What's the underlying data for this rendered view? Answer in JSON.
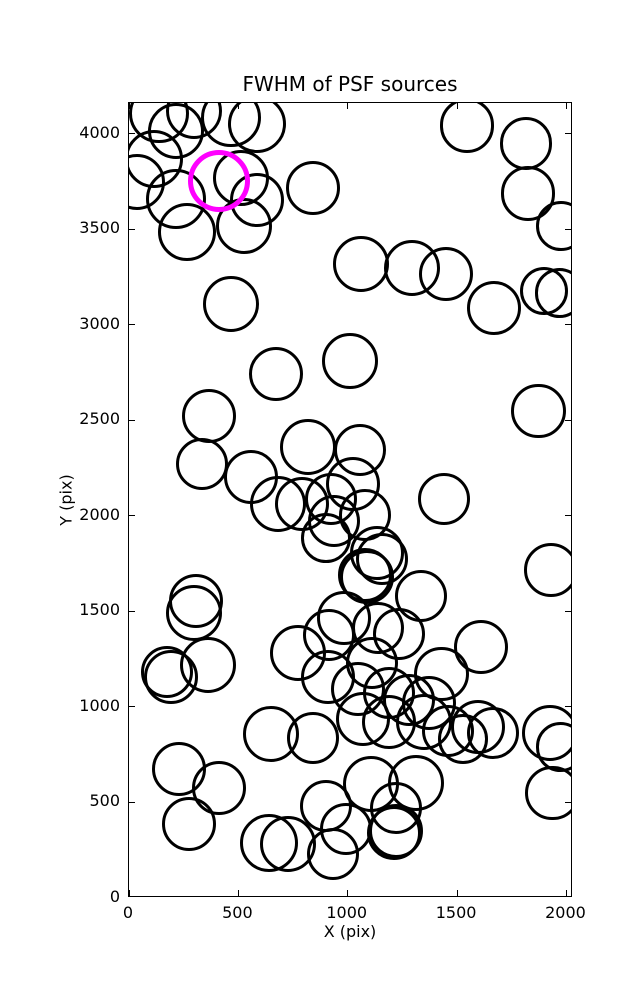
{
  "chart_data": {
    "type": "scatter",
    "title": "FWHM of PSF sources",
    "xlabel": "X (pix)",
    "ylabel": "Y (pix)",
    "xlim": [
      0,
      2030
    ],
    "ylim": [
      0,
      4160
    ],
    "x_ticks": [
      0,
      500,
      1000,
      1500,
      2000
    ],
    "y_ticks": [
      0,
      500,
      1000,
      1500,
      2000,
      2500,
      3000,
      3500,
      4000
    ],
    "grid": false,
    "legend": null,
    "marker": "circle-outline",
    "stroke_color": "#000000",
    "highlight_color": "#ff00ff",
    "radius_units": "x-data-units",
    "points": [
      {
        "x": 137,
        "y": 4105,
        "r": 137
      },
      {
        "x": 215,
        "y": 4016,
        "r": 128
      },
      {
        "x": 297,
        "y": 4120,
        "r": 128
      },
      {
        "x": 467,
        "y": 4084,
        "r": 137
      },
      {
        "x": 586,
        "y": 4052,
        "r": 133
      },
      {
        "x": 114,
        "y": 3869,
        "r": 133
      },
      {
        "x": 37,
        "y": 3749,
        "r": 128
      },
      {
        "x": 215,
        "y": 3660,
        "r": 137
      },
      {
        "x": 513,
        "y": 3770,
        "r": 128
      },
      {
        "x": 265,
        "y": 3487,
        "r": 133
      },
      {
        "x": 526,
        "y": 3518,
        "r": 128
      },
      {
        "x": 586,
        "y": 3654,
        "r": 124
      },
      {
        "x": 842,
        "y": 3717,
        "r": 124
      },
      {
        "x": 467,
        "y": 3110,
        "r": 128
      },
      {
        "x": 1547,
        "y": 4042,
        "r": 124
      },
      {
        "x": 1817,
        "y": 3948,
        "r": 119
      },
      {
        "x": 1826,
        "y": 3686,
        "r": 124
      },
      {
        "x": 1977,
        "y": 3518,
        "r": 114
      },
      {
        "x": 1899,
        "y": 3178,
        "r": 110
      },
      {
        "x": 1968,
        "y": 3168,
        "r": 114
      },
      {
        "x": 1670,
        "y": 3089,
        "r": 124
      },
      {
        "x": 1062,
        "y": 3319,
        "r": 128
      },
      {
        "x": 1295,
        "y": 3298,
        "r": 128
      },
      {
        "x": 1451,
        "y": 3267,
        "r": 124
      },
      {
        "x": 673,
        "y": 2743,
        "r": 124
      },
      {
        "x": 1011,
        "y": 2811,
        "r": 128
      },
      {
        "x": 1872,
        "y": 2550,
        "r": 124
      },
      {
        "x": 366,
        "y": 2524,
        "r": 124
      },
      {
        "x": 334,
        "y": 2272,
        "r": 119
      },
      {
        "x": 558,
        "y": 2204,
        "r": 124
      },
      {
        "x": 819,
        "y": 2361,
        "r": 128
      },
      {
        "x": 1057,
        "y": 2346,
        "r": 119
      },
      {
        "x": 1442,
        "y": 2089,
        "r": 119
      },
      {
        "x": 1025,
        "y": 2168,
        "r": 124
      },
      {
        "x": 682,
        "y": 2063,
        "r": 128
      },
      {
        "x": 792,
        "y": 2063,
        "r": 124
      },
      {
        "x": 924,
        "y": 2089,
        "r": 119
      },
      {
        "x": 938,
        "y": 1974,
        "r": 119
      },
      {
        "x": 1080,
        "y": 2005,
        "r": 119
      },
      {
        "x": 902,
        "y": 1885,
        "r": 114
      },
      {
        "x": 1135,
        "y": 1806,
        "r": 124
      },
      {
        "x": 1158,
        "y": 1775,
        "r": 119
      },
      {
        "x": 1080,
        "y": 1691,
        "r": 124
      },
      {
        "x": 1089,
        "y": 1681,
        "r": 124
      },
      {
        "x": 1931,
        "y": 1717,
        "r": 124
      },
      {
        "x": 307,
        "y": 1555,
        "r": 124
      },
      {
        "x": 297,
        "y": 1492,
        "r": 128
      },
      {
        "x": 362,
        "y": 1220,
        "r": 128
      },
      {
        "x": 174,
        "y": 1183,
        "r": 119
      },
      {
        "x": 192,
        "y": 1157,
        "r": 124
      },
      {
        "x": 984,
        "y": 1466,
        "r": 124
      },
      {
        "x": 915,
        "y": 1377,
        "r": 119
      },
      {
        "x": 773,
        "y": 1283,
        "r": 128
      },
      {
        "x": 911,
        "y": 1157,
        "r": 124
      },
      {
        "x": 1048,
        "y": 1094,
        "r": 124
      },
      {
        "x": 1112,
        "y": 1230,
        "r": 119
      },
      {
        "x": 1140,
        "y": 1414,
        "r": 119
      },
      {
        "x": 1236,
        "y": 1382,
        "r": 119
      },
      {
        "x": 1336,
        "y": 1581,
        "r": 119
      },
      {
        "x": 1190,
        "y": 1073,
        "r": 119
      },
      {
        "x": 1281,
        "y": 1037,
        "r": 119
      },
      {
        "x": 1373,
        "y": 1021,
        "r": 124
      },
      {
        "x": 1429,
        "y": 1173,
        "r": 124
      },
      {
        "x": 1611,
        "y": 1314,
        "r": 124
      },
      {
        "x": 1071,
        "y": 937,
        "r": 124
      },
      {
        "x": 1190,
        "y": 921,
        "r": 124
      },
      {
        "x": 1350,
        "y": 921,
        "r": 128
      },
      {
        "x": 1460,
        "y": 874,
        "r": 119
      },
      {
        "x": 1529,
        "y": 832,
        "r": 114
      },
      {
        "x": 1597,
        "y": 895,
        "r": 124
      },
      {
        "x": 1666,
        "y": 864,
        "r": 119
      },
      {
        "x": 1927,
        "y": 864,
        "r": 128
      },
      {
        "x": 1973,
        "y": 791,
        "r": 114
      },
      {
        "x": 1936,
        "y": 550,
        "r": 124
      },
      {
        "x": 650,
        "y": 858,
        "r": 128
      },
      {
        "x": 842,
        "y": 838,
        "r": 119
      },
      {
        "x": 229,
        "y": 675,
        "r": 124
      },
      {
        "x": 412,
        "y": 576,
        "r": 124
      },
      {
        "x": 275,
        "y": 387,
        "r": 124
      },
      {
        "x": 902,
        "y": 482,
        "r": 119
      },
      {
        "x": 1108,
        "y": 597,
        "r": 128
      },
      {
        "x": 1314,
        "y": 602,
        "r": 128
      },
      {
        "x": 1222,
        "y": 471,
        "r": 119
      },
      {
        "x": 1222,
        "y": 351,
        "r": 124
      },
      {
        "x": 993,
        "y": 361,
        "r": 119
      },
      {
        "x": 641,
        "y": 288,
        "r": 133
      },
      {
        "x": 728,
        "y": 283,
        "r": 128
      },
      {
        "x": 934,
        "y": 230,
        "r": 119
      },
      {
        "x": 1213,
        "y": 340,
        "r": 124
      }
    ],
    "highlight_point": {
      "x": 412,
      "y": 3754,
      "r": 142
    }
  }
}
